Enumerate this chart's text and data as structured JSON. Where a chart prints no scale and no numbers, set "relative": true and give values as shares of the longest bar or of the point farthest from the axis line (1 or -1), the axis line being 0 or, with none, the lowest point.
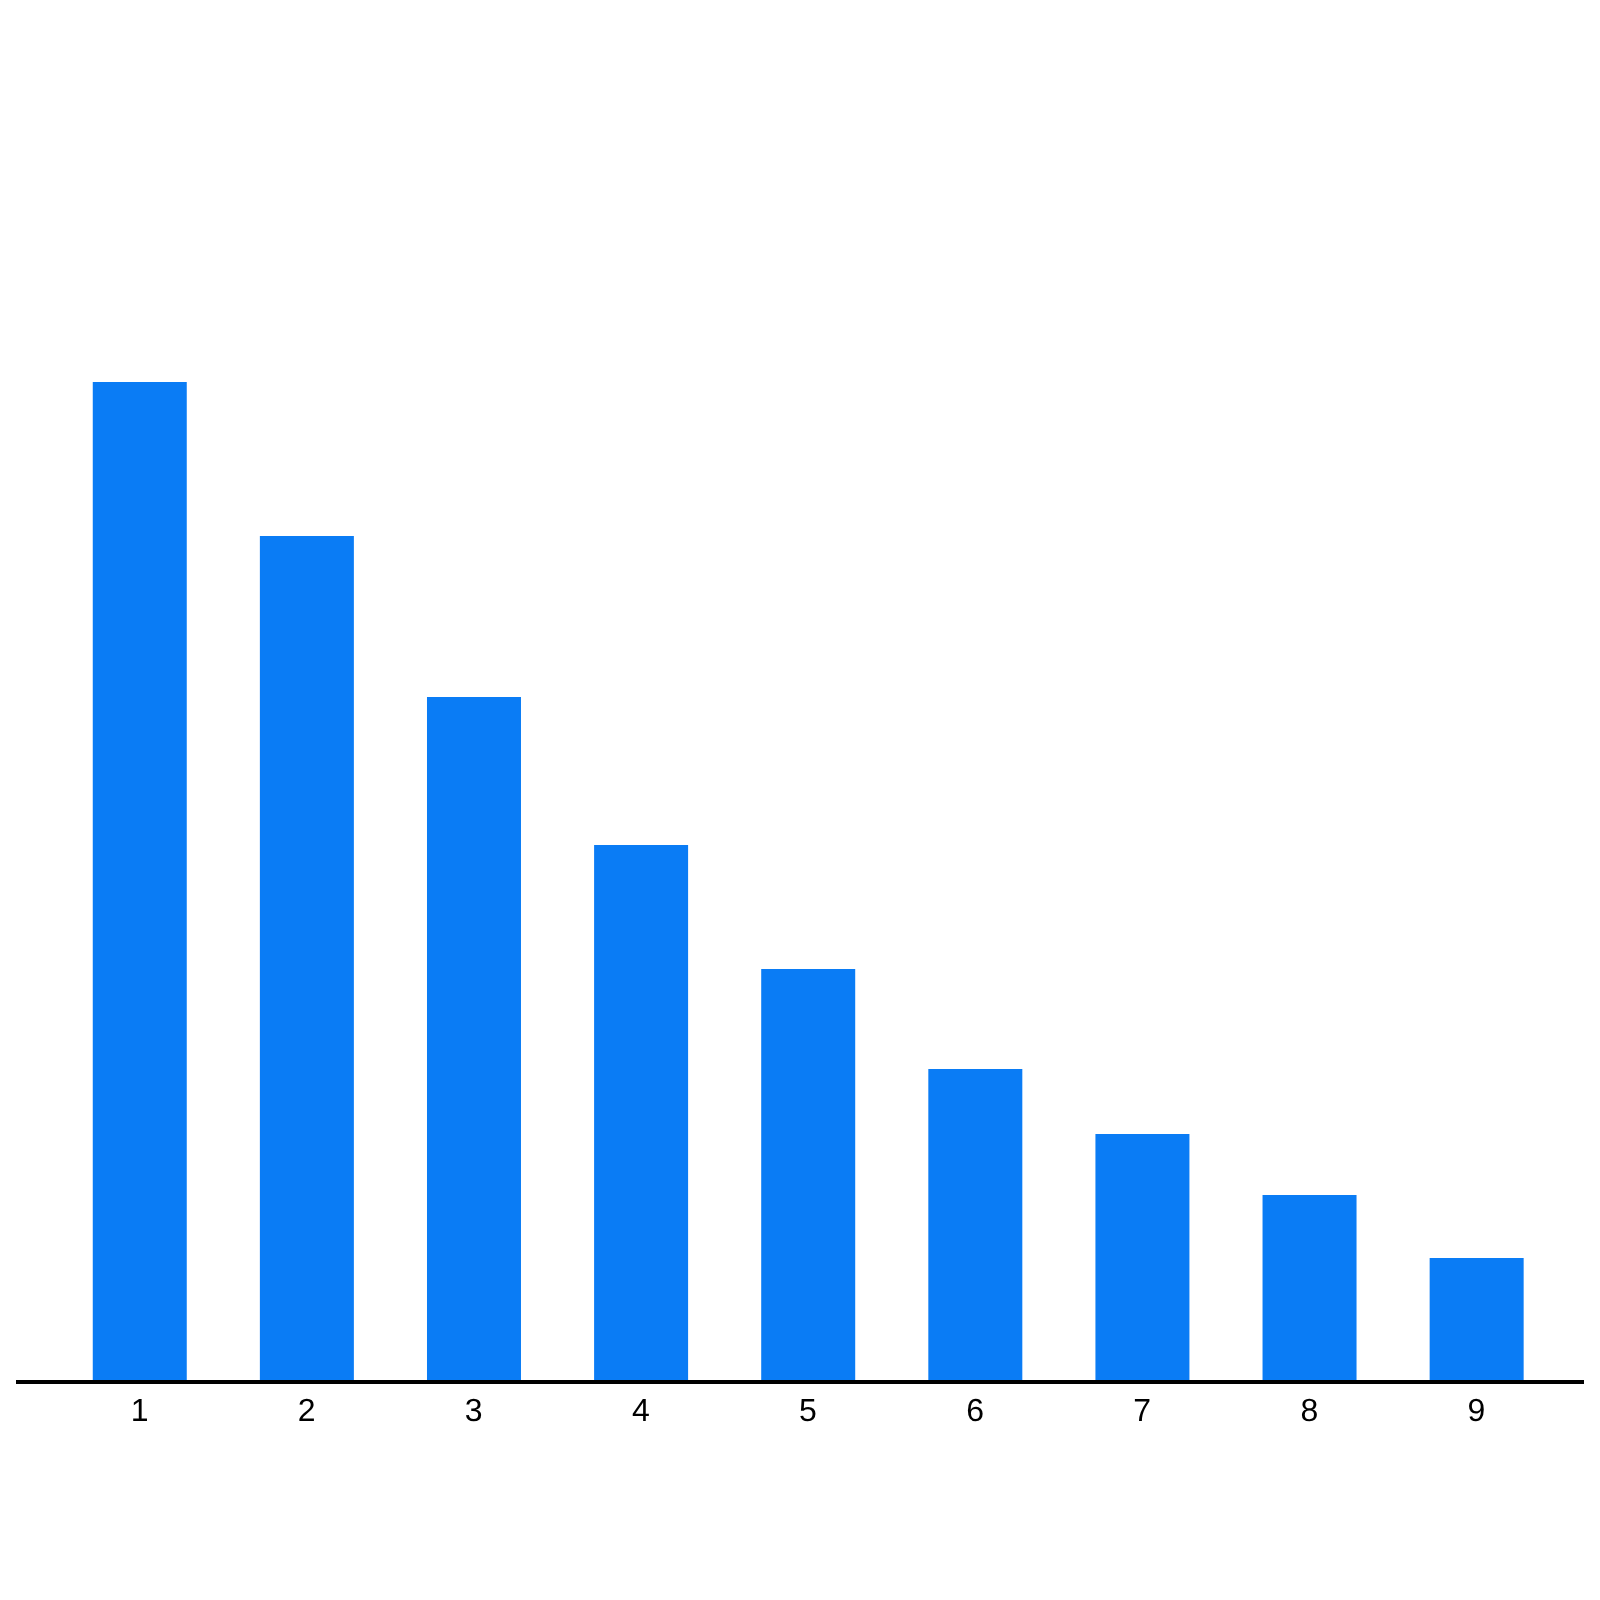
{
  "chart_data": {
    "type": "bar",
    "categories": [
      "1",
      "2",
      "3",
      "4",
      "5",
      "6",
      "7",
      "8",
      "9"
    ],
    "values": [
      1,
      0.846,
      0.685,
      0.537,
      0.413,
      0.313,
      0.248,
      0.187,
      0.124
    ],
    "color": "#0a7cf5",
    "relative": true
  }
}
